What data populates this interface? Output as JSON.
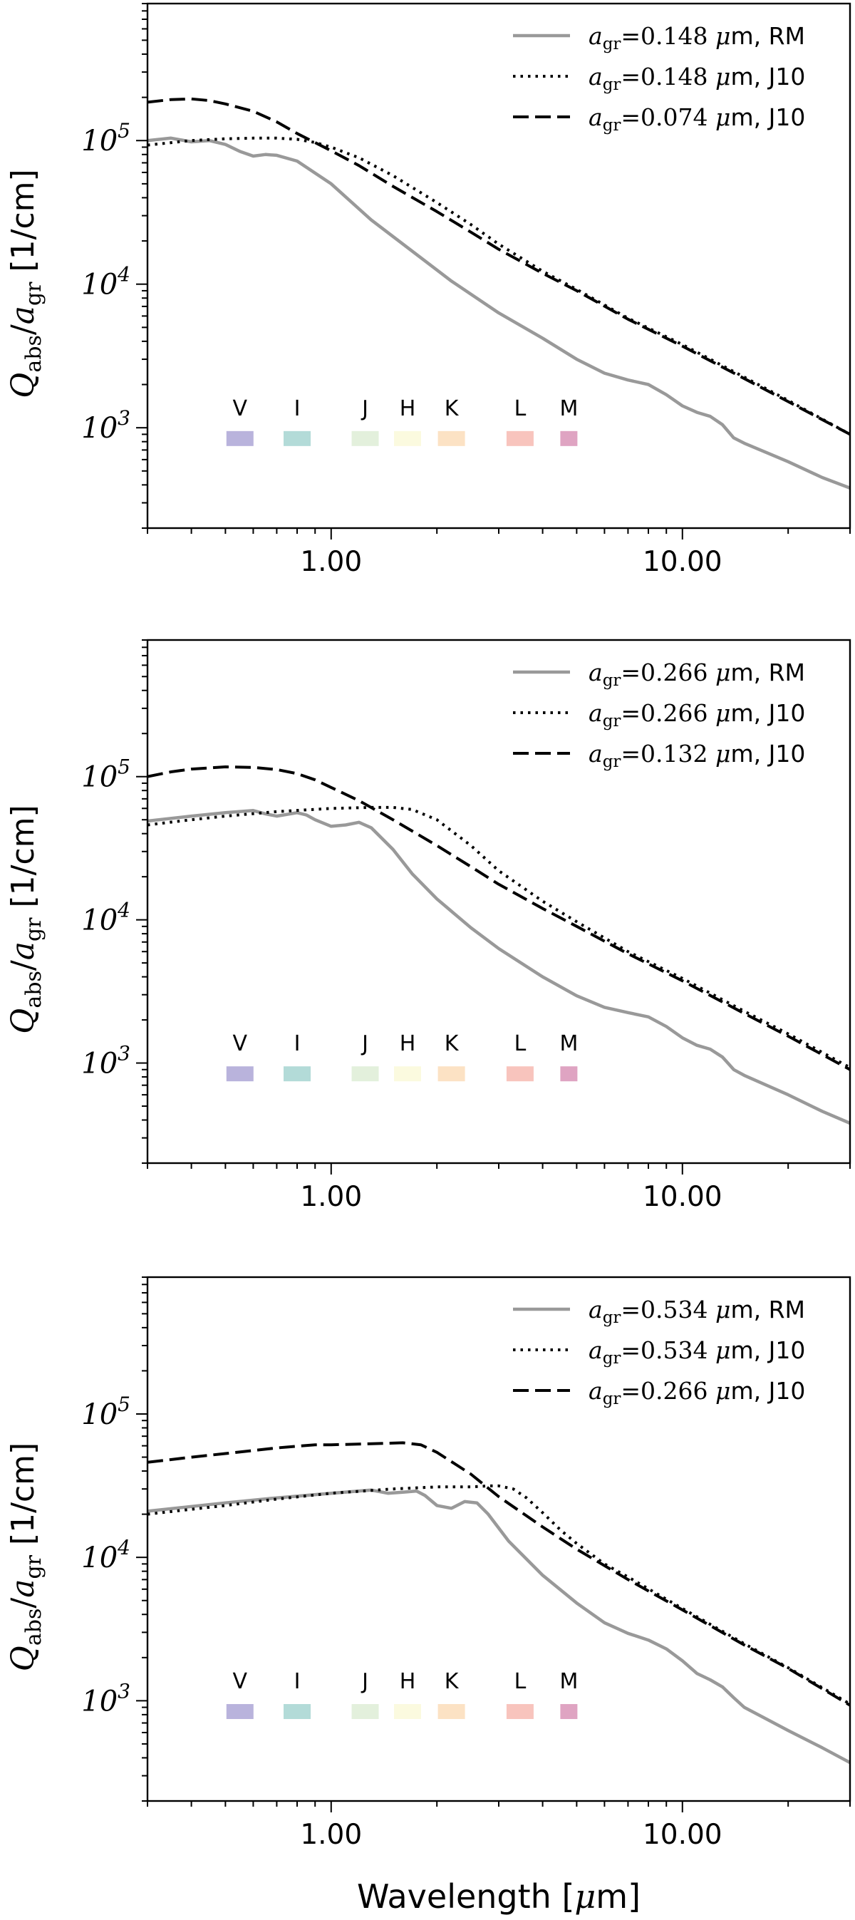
{
  "chart_data": [
    {
      "type": "line",
      "xscale": "log",
      "yscale": "log",
      "xlim": [
        0.3,
        30
      ],
      "ylim": [
        200,
        900000
      ],
      "ylabel": "Q_abs/a_gr [1/cm]",
      "ylabel_parts": {
        "symbol": "Q",
        "sub1": "abs",
        "slash": "/",
        "symbol2": "a",
        "sub2": "gr",
        "unit": "[1/cm]"
      },
      "xticks": [
        {
          "value": 1,
          "label": "1.00"
        },
        {
          "value": 10,
          "label": "10.00"
        }
      ],
      "yticks": [
        {
          "value": 1000,
          "base": "10",
          "exp": "3"
        },
        {
          "value": 10000,
          "base": "10",
          "exp": "4"
        },
        {
          "value": 100000,
          "base": "10",
          "exp": "5"
        }
      ],
      "legend": [
        {
          "label": "a_gr=0.148 μm, RM",
          "pre": "a",
          "sub": "gr",
          "eq": "=0.148 ",
          "mu": "μ",
          "post": "m, RM",
          "style": "solid",
          "color": "#999999"
        },
        {
          "label": "a_gr=0.148 μm, J10",
          "pre": "a",
          "sub": "gr",
          "eq": "=0.148 ",
          "mu": "μ",
          "post": "m, J10",
          "style": "dotted",
          "color": "#000000"
        },
        {
          "label": "a_gr=0.074 μm, J10",
          "pre": "a",
          "sub": "gr",
          "eq": "=0.074 ",
          "mu": "μ",
          "post": "m, J10",
          "style": "dashed",
          "color": "#000000"
        }
      ],
      "series": [
        {
          "name": "a_gr=0.148 μm, RM",
          "style": "solid",
          "color": "#999999",
          "x": [
            0.3,
            0.35,
            0.4,
            0.45,
            0.5,
            0.55,
            0.6,
            0.65,
            0.7,
            0.8,
            1.0,
            1.3,
            1.7,
            2.2,
            3.0,
            4.0,
            5.0,
            6.0,
            7.0,
            8.0,
            9.0,
            10.0,
            11.0,
            12.0,
            13.0,
            14.0,
            15.0,
            20.0,
            25.0,
            30.0
          ],
          "y": [
            100000,
            104000,
            98000,
            100000,
            94000,
            84000,
            78000,
            80000,
            79000,
            72000,
            50000,
            28000,
            17000,
            10500,
            6300,
            4200,
            3000,
            2400,
            2150,
            2000,
            1700,
            1420,
            1280,
            1200,
            1050,
            850,
            780,
            580,
            450,
            380
          ]
        },
        {
          "name": "a_gr=0.148 μm, J10",
          "style": "dotted",
          "color": "#000000",
          "x": [
            0.3,
            0.4,
            0.5,
            0.6,
            0.7,
            0.8,
            0.9,
            1.0,
            1.2,
            1.5,
            2.0,
            2.5,
            3.0,
            4.0,
            5.0,
            7.0,
            10.0,
            15.0,
            20.0,
            30.0
          ],
          "y": [
            93000,
            100000,
            103000,
            104000,
            104000,
            102000,
            97000,
            90000,
            76000,
            57000,
            37000,
            26000,
            19000,
            12300,
            9200,
            5800,
            3800,
            2250,
            1550,
            900
          ]
        },
        {
          "name": "a_gr=0.074 μm, J10",
          "style": "dashed",
          "color": "#000000",
          "x": [
            0.3,
            0.35,
            0.4,
            0.45,
            0.5,
            0.6,
            0.7,
            0.8,
            1.0,
            1.2,
            1.5,
            2.0,
            2.5,
            3.0,
            4.0,
            5.0,
            7.0,
            10.0,
            15.0,
            20.0,
            30.0
          ],
          "y": [
            185000,
            193000,
            195000,
            190000,
            180000,
            160000,
            135000,
            112000,
            85000,
            67000,
            48000,
            32000,
            23000,
            17500,
            11900,
            9000,
            5700,
            3700,
            2200,
            1520,
            900
          ]
        }
      ],
      "bands": [
        {
          "name": "V",
          "center": 0.55,
          "color": "#b9b3dc"
        },
        {
          "name": "I",
          "center": 0.8,
          "color": "#b3dbd8"
        },
        {
          "name": "J",
          "center": 1.25,
          "color": "#e3f0dc"
        },
        {
          "name": "H",
          "center": 1.65,
          "color": "#fbfadf"
        },
        {
          "name": "K",
          "center": 2.2,
          "color": "#fce2c4"
        },
        {
          "name": "L",
          "center": 3.45,
          "color": "#f8c4bd"
        },
        {
          "name": "M",
          "center": 4.75,
          "color": "#dfa4c2"
        }
      ]
    },
    {
      "type": "line",
      "xscale": "log",
      "yscale": "log",
      "xlim": [
        0.3,
        30
      ],
      "ylim": [
        200,
        900000
      ],
      "ylabel": "Q_abs/a_gr [1/cm]",
      "ylabel_parts": {
        "symbol": "Q",
        "sub1": "abs",
        "slash": "/",
        "symbol2": "a",
        "sub2": "gr",
        "unit": "[1/cm]"
      },
      "xticks": [
        {
          "value": 1,
          "label": "1.00"
        },
        {
          "value": 10,
          "label": "10.00"
        }
      ],
      "yticks": [
        {
          "value": 1000,
          "base": "10",
          "exp": "3"
        },
        {
          "value": 10000,
          "base": "10",
          "exp": "4"
        },
        {
          "value": 100000,
          "base": "10",
          "exp": "5"
        }
      ],
      "legend": [
        {
          "label": "a_gr=0.266 μm, RM",
          "pre": "a",
          "sub": "gr",
          "eq": "=0.266 ",
          "mu": "μ",
          "post": "m, RM",
          "style": "solid",
          "color": "#999999"
        },
        {
          "label": "a_gr=0.266 μm, J10",
          "pre": "a",
          "sub": "gr",
          "eq": "=0.266 ",
          "mu": "μ",
          "post": "m, J10",
          "style": "dotted",
          "color": "#000000"
        },
        {
          "label": "a_gr=0.132 μm, J10",
          "pre": "a",
          "sub": "gr",
          "eq": "=0.132 ",
          "mu": "μ",
          "post": "m, J10",
          "style": "dashed",
          "color": "#000000"
        }
      ],
      "series": [
        {
          "name": "a_gr=0.266 μm, RM",
          "style": "solid",
          "color": "#999999",
          "x": [
            0.3,
            0.4,
            0.5,
            0.6,
            0.65,
            0.7,
            0.8,
            0.85,
            0.9,
            1.0,
            1.1,
            1.2,
            1.3,
            1.5,
            1.7,
            2.0,
            2.5,
            3.0,
            4.0,
            5.0,
            6.0,
            7.0,
            8.0,
            9.0,
            10.0,
            11.0,
            12.0,
            13.0,
            14.0,
            15.0,
            20.0,
            25.0,
            30.0
          ],
          "y": [
            49000,
            53000,
            56000,
            58000,
            55000,
            53000,
            56000,
            54000,
            50000,
            45000,
            46000,
            48000,
            44000,
            31000,
            21000,
            14000,
            8800,
            6300,
            4000,
            2950,
            2450,
            2250,
            2100,
            1800,
            1500,
            1330,
            1250,
            1100,
            900,
            820,
            600,
            460,
            380
          ]
        },
        {
          "name": "a_gr=0.266 μm, J10",
          "style": "dotted",
          "color": "#000000",
          "x": [
            0.3,
            0.4,
            0.5,
            0.7,
            1.0,
            1.3,
            1.5,
            1.7,
            2.0,
            2.5,
            3.0,
            4.0,
            5.0,
            7.0,
            10.0,
            15.0,
            20.0,
            30.0
          ],
          "y": [
            46000,
            50000,
            53000,
            57000,
            60000,
            61000,
            61000,
            59000,
            50000,
            33000,
            22000,
            13500,
            9700,
            6000,
            3900,
            2300,
            1600,
            930
          ]
        },
        {
          "name": "a_gr=0.132 μm, J10",
          "style": "dashed",
          "color": "#000000",
          "x": [
            0.3,
            0.35,
            0.4,
            0.5,
            0.6,
            0.7,
            0.8,
            0.9,
            1.0,
            1.2,
            1.5,
            2.0,
            2.5,
            3.0,
            4.0,
            5.0,
            7.0,
            10.0,
            15.0,
            20.0,
            30.0
          ],
          "y": [
            100000,
            108000,
            113000,
            117000,
            116000,
            112000,
            105000,
            95000,
            84000,
            68000,
            50000,
            33000,
            23500,
            17700,
            12000,
            9000,
            5800,
            3750,
            2220,
            1540,
            900
          ]
        }
      ],
      "bands": [
        {
          "name": "V",
          "center": 0.55,
          "color": "#b9b3dc"
        },
        {
          "name": "I",
          "center": 0.8,
          "color": "#b3dbd8"
        },
        {
          "name": "J",
          "center": 1.25,
          "color": "#e3f0dc"
        },
        {
          "name": "H",
          "center": 1.65,
          "color": "#fbfadf"
        },
        {
          "name": "K",
          "center": 2.2,
          "color": "#fce2c4"
        },
        {
          "name": "L",
          "center": 3.45,
          "color": "#f8c4bd"
        },
        {
          "name": "M",
          "center": 4.75,
          "color": "#dfa4c2"
        }
      ]
    },
    {
      "type": "line",
      "xscale": "log",
      "yscale": "log",
      "xlim": [
        0.3,
        30
      ],
      "ylim": [
        200,
        900000
      ],
      "xlabel": "Wavelength [μm]",
      "xlabel_parts": {
        "pre": "Wavelength [",
        "mu": "μ",
        "post": "m]"
      },
      "ylabel": "Q_abs/a_gr [1/cm]",
      "ylabel_parts": {
        "symbol": "Q",
        "sub1": "abs",
        "slash": "/",
        "symbol2": "a",
        "sub2": "gr",
        "unit": "[1/cm]"
      },
      "xticks": [
        {
          "value": 1,
          "label": "1.00"
        },
        {
          "value": 10,
          "label": "10.00"
        }
      ],
      "yticks": [
        {
          "value": 1000,
          "base": "10",
          "exp": "3"
        },
        {
          "value": 10000,
          "base": "10",
          "exp": "4"
        },
        {
          "value": 100000,
          "base": "10",
          "exp": "5"
        }
      ],
      "legend": [
        {
          "label": "a_gr=0.534 μm, RM",
          "pre": "a",
          "sub": "gr",
          "eq": "=0.534 ",
          "mu": "μ",
          "post": "m, RM",
          "style": "solid",
          "color": "#999999"
        },
        {
          "label": "a_gr=0.534 μm, J10",
          "pre": "a",
          "sub": "gr",
          "eq": "=0.534 ",
          "mu": "μ",
          "post": "m, J10",
          "style": "dotted",
          "color": "#000000"
        },
        {
          "label": "a_gr=0.266 μm, J10",
          "pre": "a",
          "sub": "gr",
          "eq": "=0.266 ",
          "mu": "μ",
          "post": "m, J10",
          "style": "dashed",
          "color": "#000000"
        }
      ],
      "series": [
        {
          "name": "a_gr=0.534 μm, RM",
          "style": "solid",
          "color": "#999999",
          "x": [
            0.3,
            0.5,
            0.7,
            1.0,
            1.2,
            1.3,
            1.45,
            1.6,
            1.75,
            1.85,
            2.0,
            2.2,
            2.4,
            2.6,
            2.8,
            3.2,
            4.0,
            5.0,
            6.0,
            7.0,
            8.0,
            9.0,
            10.0,
            11.0,
            12.0,
            13.0,
            14.0,
            15.0,
            20.0,
            25.0,
            30.0
          ],
          "y": [
            21000,
            24000,
            26000,
            28000,
            29000,
            29500,
            28000,
            28500,
            29000,
            27000,
            23000,
            22000,
            24500,
            24000,
            20000,
            13000,
            7500,
            4800,
            3500,
            2950,
            2650,
            2300,
            1900,
            1550,
            1400,
            1250,
            1050,
            900,
            620,
            470,
            370
          ]
        },
        {
          "name": "a_gr=0.534 μm, J10",
          "style": "dotted",
          "color": "#000000",
          "x": [
            0.3,
            0.5,
            0.7,
            1.0,
            1.5,
            2.0,
            2.5,
            2.8,
            3.0,
            3.3,
            3.6,
            4.0,
            4.5,
            5.0,
            6.0,
            7.0,
            10.0,
            15.0,
            20.0,
            30.0
          ],
          "y": [
            20000,
            23000,
            25500,
            28000,
            30000,
            31000,
            31000,
            31500,
            31500,
            30000,
            26000,
            20500,
            15500,
            12500,
            9000,
            7300,
            4400,
            2500,
            1700,
            950
          ]
        },
        {
          "name": "a_gr=0.266 μm, J10",
          "style": "dashed",
          "color": "#000000",
          "x": [
            0.3,
            0.4,
            0.5,
            0.7,
            0.9,
            1.0,
            1.3,
            1.6,
            1.8,
            2.0,
            2.5,
            3.0,
            4.0,
            5.0,
            7.0,
            10.0,
            15.0,
            20.0,
            30.0
          ],
          "y": [
            46000,
            50000,
            53000,
            58000,
            61000,
            61000,
            62000,
            63000,
            61000,
            54000,
            38000,
            26500,
            16300,
            11400,
            7000,
            4300,
            2450,
            1680,
            930
          ]
        }
      ],
      "bands": [
        {
          "name": "V",
          "center": 0.55,
          "color": "#b9b3dc"
        },
        {
          "name": "I",
          "center": 0.8,
          "color": "#b3dbd8"
        },
        {
          "name": "J",
          "center": 1.25,
          "color": "#e3f0dc"
        },
        {
          "name": "H",
          "center": 1.65,
          "color": "#fbfadf"
        },
        {
          "name": "K",
          "center": 2.2,
          "color": "#fce2c4"
        },
        {
          "name": "L",
          "center": 3.45,
          "color": "#f8c4bd"
        },
        {
          "name": "M",
          "center": 4.75,
          "color": "#dfa4c2"
        }
      ]
    }
  ]
}
